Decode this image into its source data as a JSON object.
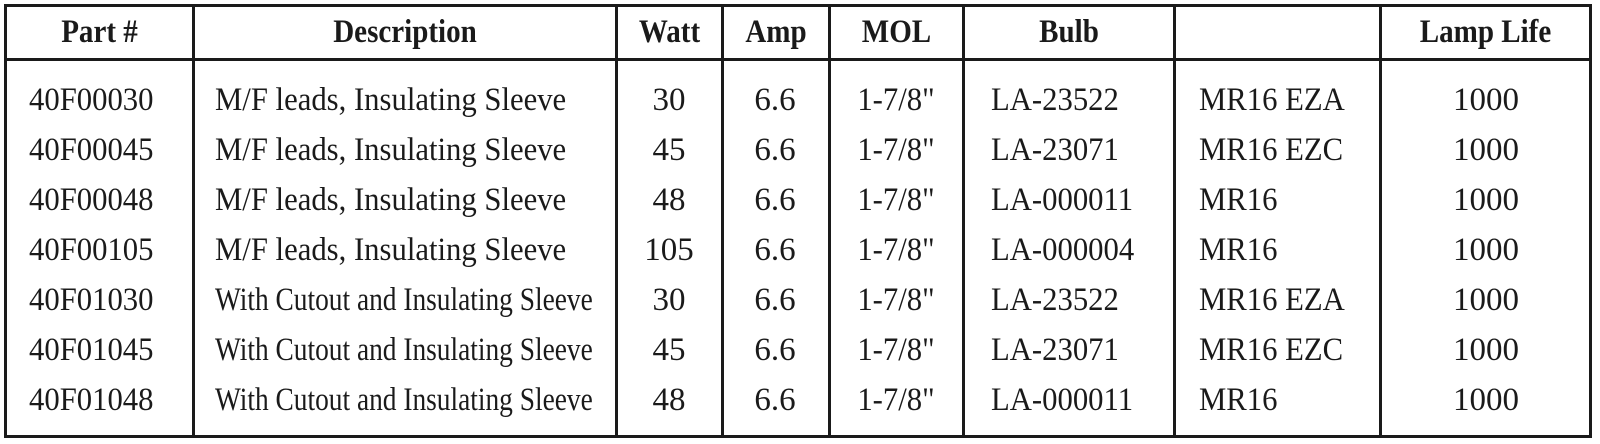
{
  "table": {
    "headers": {
      "part": "Part #",
      "description": "Description",
      "watt": "Watt",
      "amp": "Amp",
      "mol": "MOL",
      "bulb": "Bulb",
      "type": "",
      "lamp_life": "Lamp Life"
    },
    "rows": [
      {
        "part": "40F00030",
        "description": "M/F leads, Insulating Sleeve",
        "watt": "30",
        "amp": "6.6",
        "mol": "1-7/8\"",
        "bulb": "LA-23522",
        "type": "MR16 EZA",
        "lamp_life": "1000"
      },
      {
        "part": "40F00045",
        "description": "M/F leads, Insulating Sleeve",
        "watt": "45",
        "amp": "6.6",
        "mol": "1-7/8\"",
        "bulb": "LA-23071",
        "type": "MR16 EZC",
        "lamp_life": "1000"
      },
      {
        "part": "40F00048",
        "description": "M/F leads, Insulating Sleeve",
        "watt": "48",
        "amp": "6.6",
        "mol": "1-7/8\"",
        "bulb": "LA-000011",
        "type": "MR16",
        "lamp_life": "1000"
      },
      {
        "part": "40F00105",
        "description": "M/F leads, Insulating Sleeve",
        "watt": "105",
        "amp": "6.6",
        "mol": "1-7/8\"",
        "bulb": "LA-000004",
        "type": "MR16",
        "lamp_life": "1000"
      },
      {
        "part": "40F01030",
        "description": "With Cutout and Insulating Sleeve",
        "watt": "30",
        "amp": "6.6",
        "mol": "1-7/8\"",
        "bulb": "LA-23522",
        "type": "MR16 EZA",
        "lamp_life": "1000"
      },
      {
        "part": "40F01045",
        "description": "With Cutout and Insulating Sleeve",
        "watt": "45",
        "amp": "6.6",
        "mol": "1-7/8\"",
        "bulb": "LA-23071",
        "type": "MR16 EZC",
        "lamp_life": "1000"
      },
      {
        "part": "40F01048",
        "description": "With Cutout and Insulating Sleeve",
        "watt": "48",
        "amp": "6.6",
        "mol": "1-7/8\"",
        "bulb": "LA-000011",
        "type": "MR16",
        "lamp_life": "1000"
      }
    ]
  }
}
